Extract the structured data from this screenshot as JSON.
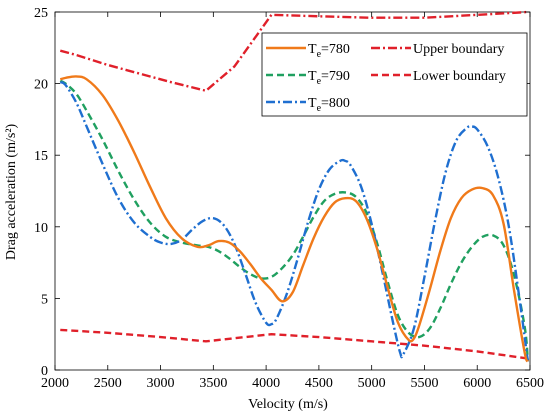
{
  "chart_data": {
    "type": "line",
    "xlabel": "Velocity (m/s)",
    "ylabel": "Drag acceleration (m/s²)",
    "xlim": [
      2000,
      6500
    ],
    "ylim": [
      0,
      25
    ],
    "xticks": [
      "2000",
      "2500",
      "3000",
      "3500",
      "4000",
      "4500",
      "5000",
      "5500",
      "6000",
      "6500"
    ],
    "yticks": [
      "0",
      "5",
      "10",
      "15",
      "20",
      "25"
    ],
    "grid": false,
    "legend_position": "top-right",
    "series": [
      {
        "name": "Te=780",
        "label_main": "T",
        "label_sub": "e",
        "label_rest": "=780",
        "color": "#f07a1a",
        "style": "solid",
        "x": [
          2050,
          2100,
          2200,
          2300,
          2450,
          2600,
          2750,
          2900,
          3050,
          3200,
          3350,
          3450,
          3550,
          3650,
          3750,
          3850,
          3950,
          4050,
          4150,
          4250,
          4350,
          4450,
          4550,
          4650,
          4750,
          4850,
          4950,
          5050,
          5150,
          5250,
          5350,
          5400,
          5450,
          5550,
          5650,
          5750,
          5850,
          5950,
          6050,
          6150,
          6250,
          6350,
          6450,
          6480
        ],
        "y": [
          20.3,
          20.4,
          20.5,
          20.3,
          19.2,
          17.4,
          15.2,
          12.8,
          10.6,
          9.2,
          8.6,
          8.7,
          9.0,
          8.9,
          8.3,
          7.4,
          6.4,
          5.6,
          4.8,
          5.4,
          7.3,
          9.2,
          10.7,
          11.7,
          12.0,
          11.8,
          10.6,
          8.5,
          5.8,
          3.3,
          2.1,
          2.2,
          3.1,
          5.6,
          8.3,
          10.6,
          12.0,
          12.6,
          12.7,
          12.2,
          10.2,
          5.5,
          1.2,
          0.6
        ]
      },
      {
        "name": "Te=790",
        "label_main": "T",
        "label_sub": "e",
        "label_rest": "=790",
        "color": "#20a060",
        "style": "dashed",
        "x": [
          2050,
          2100,
          2200,
          2300,
          2450,
          2600,
          2750,
          2900,
          3050,
          3200,
          3350,
          3450,
          3550,
          3650,
          3750,
          3850,
          3950,
          4050,
          4150,
          4250,
          4350,
          4450,
          4550,
          4650,
          4750,
          4850,
          4950,
          5050,
          5150,
          5250,
          5350,
          5450,
          5550,
          5650,
          5750,
          5850,
          5950,
          6050,
          6150,
          6250,
          6350,
          6450,
          6480
        ],
        "y": [
          20.2,
          20.0,
          19.3,
          18.1,
          16.1,
          13.9,
          11.9,
          10.3,
          9.3,
          8.9,
          8.7,
          8.6,
          8.3,
          7.8,
          7.2,
          6.7,
          6.4,
          6.5,
          7.1,
          8.0,
          9.3,
          10.7,
          11.8,
          12.3,
          12.4,
          12.1,
          11.0,
          8.9,
          6.2,
          3.8,
          2.6,
          2.3,
          2.9,
          4.3,
          6.0,
          7.5,
          8.6,
          9.3,
          9.4,
          8.7,
          6.6,
          3.0,
          0.6
        ]
      },
      {
        "name": "Te=800",
        "label_main": "T",
        "label_sub": "e",
        "label_rest": "=800",
        "color": "#1f6fd0",
        "style": "dashdot",
        "x": [
          2050,
          2100,
          2200,
          2300,
          2450,
          2600,
          2750,
          2900,
          3000,
          3100,
          3200,
          3300,
          3400,
          3500,
          3600,
          3700,
          3800,
          3900,
          4000,
          4050,
          4100,
          4200,
          4300,
          4400,
          4500,
          4600,
          4700,
          4750,
          4800,
          4900,
          5000,
          5100,
          5200,
          5270,
          5300,
          5400,
          5500,
          5600,
          5700,
          5800,
          5900,
          5950,
          6000,
          6100,
          6200,
          6300,
          6400,
          6480
        ],
        "y": [
          20.1,
          19.9,
          18.7,
          17.0,
          14.4,
          12.0,
          10.3,
          9.3,
          8.9,
          8.8,
          9.1,
          9.8,
          10.4,
          10.6,
          10.1,
          8.8,
          6.8,
          4.7,
          3.3,
          3.2,
          3.6,
          5.4,
          7.8,
          10.4,
          12.6,
          14.0,
          14.6,
          14.6,
          14.3,
          12.8,
          10.2,
          6.9,
          3.4,
          1.2,
          1.1,
          2.9,
          6.5,
          10.4,
          13.8,
          16.0,
          16.9,
          17.0,
          16.8,
          15.6,
          13.4,
          10.0,
          5.0,
          0.6
        ]
      },
      {
        "name": "Upper boundary",
        "label_main": "Upper boundary",
        "color": "#e0202a",
        "style": "dashdot",
        "x": [
          2050,
          2200,
          2500,
          2800,
          3100,
          3430,
          3700,
          4050,
          4500,
          5000,
          5500,
          6000,
          6480
        ],
        "y": [
          22.3,
          22.0,
          21.3,
          20.7,
          20.1,
          19.5,
          21.2,
          24.8,
          24.7,
          24.6,
          24.6,
          24.8,
          25.0
        ]
      },
      {
        "name": "Lower boundary",
        "label_main": "Lower boundary",
        "color": "#e0202a",
        "style": "dashed",
        "x": [
          2050,
          2500,
          3000,
          3430,
          4050,
          4500,
          5000,
          5500,
          6000,
          6480
        ],
        "y": [
          2.8,
          2.6,
          2.3,
          2.0,
          2.5,
          2.3,
          2.0,
          1.7,
          1.3,
          0.8
        ]
      }
    ]
  }
}
